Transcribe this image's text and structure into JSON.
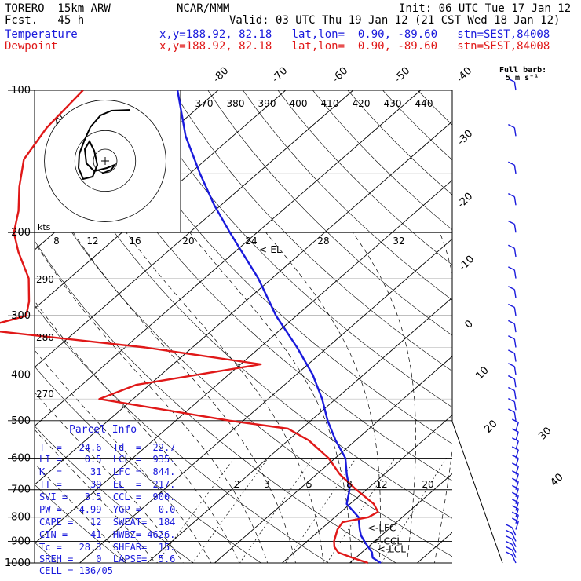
{
  "header": {
    "model": "TORERO  15km ARW",
    "fcst": "Fcst.   45 h",
    "org": "NCAR/MMM",
    "init": "Init: 06 UTC Tue 17 Jan 12",
    "valid": "Valid: 03 UTC Thu 19 Jan 12 (21 CST Wed 18 Jan 12)",
    "temp_label": "Temperature",
    "dew_label": "Dewpoint",
    "temp_loc": "x,y=188.92, 82.18   lat,lon=  0.90, -89.60   stn=SEST,84008",
    "dew_loc": "x,y=188.92, 82.18   lat,lon=  0.90, -89.60   stn=SEST,84008",
    "barb_note_1": "Full barb:",
    "barb_note_2": "5 m s⁻¹"
  },
  "colors": {
    "temperature": "#1a1adc",
    "dewpoint": "#e01818",
    "barbs": "#1a1adc"
  },
  "parcel_info": {
    "title": "Parcel Info",
    "rows": [
      "T  =   24.6  Td  =  22.7",
      "LI =    0.5  LCL =  935.",
      "K  =     31  LFC =  844.",
      "TT =     39  EL  =  217.",
      "SVI =   3.5  CCL =  900.",
      "PW =   4.99  YGP =   0.0",
      "CAPE =   12  SWEAT=  184",
      "CIN =   -41  HWBZ= 4626.",
      "Tc =   28.3  SHEAR=  15.",
      "SREH =    0  LAPSE=  5.6",
      "CELL = 136/05"
    ]
  },
  "hodograph": {
    "unit_label": "kts",
    "ring_label": "20"
  },
  "chart_data": {
    "type": "line",
    "title": "",
    "ylabel": "",
    "xlabel": "",
    "y_scale": "log-pressure",
    "ylim": [
      1000,
      100
    ],
    "pressure_levels": [
      1000,
      900,
      800,
      700,
      600,
      500,
      400,
      300,
      200,
      100
    ],
    "pressure_tick_labels": [
      "1000",
      "900",
      "800",
      "700",
      "600",
      "500",
      "400",
      "300",
      "200",
      "100"
    ],
    "isotherm_labels": [
      "-80",
      "-70",
      "-60",
      "-50",
      "-40",
      "-30",
      "-20",
      "-10",
      "0",
      "10",
      "20",
      "30",
      "40"
    ],
    "theta_labels": [
      "370",
      "380",
      "390",
      "400",
      "410",
      "420",
      "430",
      "440"
    ],
    "theta_e_labels": [
      "8",
      "12",
      "16",
      "20",
      "24",
      "28",
      "32"
    ],
    "dry_adiabat_labels": [
      "290",
      "280",
      "270"
    ],
    "mixing_ratio_labels": [
      "2",
      "3",
      "5",
      "8",
      "12",
      "20"
    ],
    "level_marks": [
      "LFC",
      "CCL",
      "LCL",
      "EL"
    ],
    "series": [
      {
        "name": "Temperature",
        "color": "#1a1adc",
        "points": [
          [
            1000,
            24.6
          ],
          [
            975,
            22.5
          ],
          [
            950,
            21.5
          ],
          [
            925,
            20.0
          ],
          [
            900,
            18.5
          ],
          [
            875,
            17.0
          ],
          [
            850,
            15.8
          ],
          [
            800,
            13.5
          ],
          [
            750,
            9.5
          ],
          [
            700,
            7.5
          ],
          [
            650,
            4.5
          ],
          [
            600,
            1.5
          ],
          [
            550,
            -3.0
          ],
          [
            500,
            -7.5
          ],
          [
            450,
            -12.0
          ],
          [
            400,
            -17.5
          ],
          [
            350,
            -24.5
          ],
          [
            300,
            -33.0
          ],
          [
            250,
            -42.0
          ],
          [
            200,
            -54.0
          ],
          [
            175,
            -61.0
          ],
          [
            150,
            -68.5
          ],
          [
            125,
            -77.0
          ],
          [
            100,
            -86.0
          ]
        ]
      },
      {
        "name": "Dewpoint",
        "color": "#e01818",
        "points": [
          [
            1000,
            22.7
          ],
          [
            975,
            19.5
          ],
          [
            950,
            16.5
          ],
          [
            925,
            15.0
          ],
          [
            900,
            14.0
          ],
          [
            850,
            12.5
          ],
          [
            820,
            12.0
          ],
          [
            800,
            15.0
          ],
          [
            780,
            15.5
          ],
          [
            750,
            13.5
          ],
          [
            700,
            8.5
          ],
          [
            650,
            3.5
          ],
          [
            600,
            -1.0
          ],
          [
            550,
            -7.0
          ],
          [
            520,
            -12.0
          ],
          [
            500,
            -22.0
          ],
          [
            450,
            -45.0
          ],
          [
            420,
            -42.0
          ],
          [
            380,
            -27.0
          ],
          [
            350,
            -47.0
          ],
          [
            320,
            -75.0
          ],
          [
            300,
            -70.0
          ],
          [
            280,
            -72.0
          ],
          [
            250,
            -76.0
          ],
          [
            220,
            -82.0
          ],
          [
            200,
            -86.0
          ],
          [
            180,
            -89.0
          ],
          [
            160,
            -93.0
          ],
          [
            140,
            -97.0
          ],
          [
            120,
            -99.0
          ],
          [
            100,
            -100.0
          ]
        ]
      }
    ]
  }
}
